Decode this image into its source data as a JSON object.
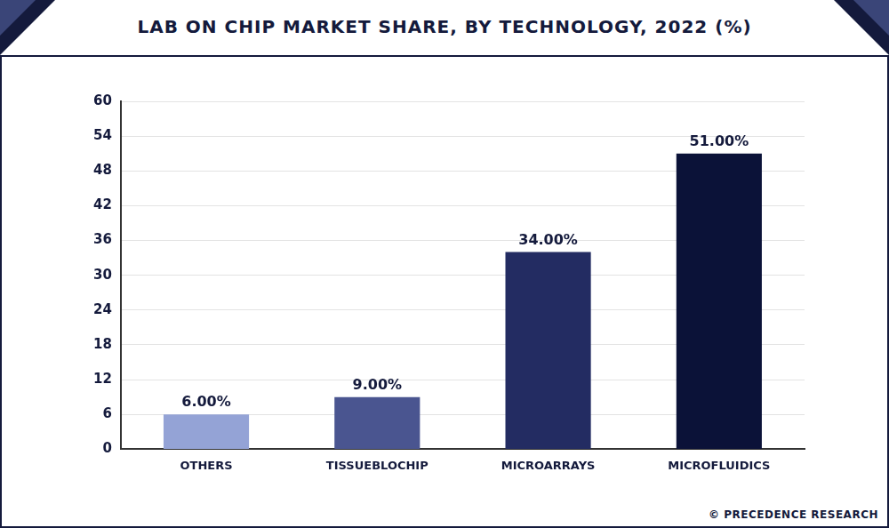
{
  "chart_data": {
    "type": "bar",
    "title": "LAB ON CHIP MARKET SHARE, BY TECHNOLOGY, 2022 (%)",
    "categories": [
      "OTHERS",
      "TISSUEBLOCHIP",
      "MICROARRAYS",
      "MICROFLUIDICS"
    ],
    "values": [
      6,
      9,
      34,
      51
    ],
    "value_labels": [
      "6.00%",
      "9.00%",
      "34.00%",
      "51.00%"
    ],
    "colors": [
      "#94a3d6",
      "#4a5590",
      "#232c62",
      "#0b1238"
    ],
    "ylim": [
      0,
      60
    ],
    "yticks": [
      0,
      6,
      12,
      18,
      24,
      30,
      36,
      42,
      48,
      54,
      60
    ],
    "grid": true,
    "data_labels": true,
    "source": "© PRECEDENCE RESEARCH"
  }
}
